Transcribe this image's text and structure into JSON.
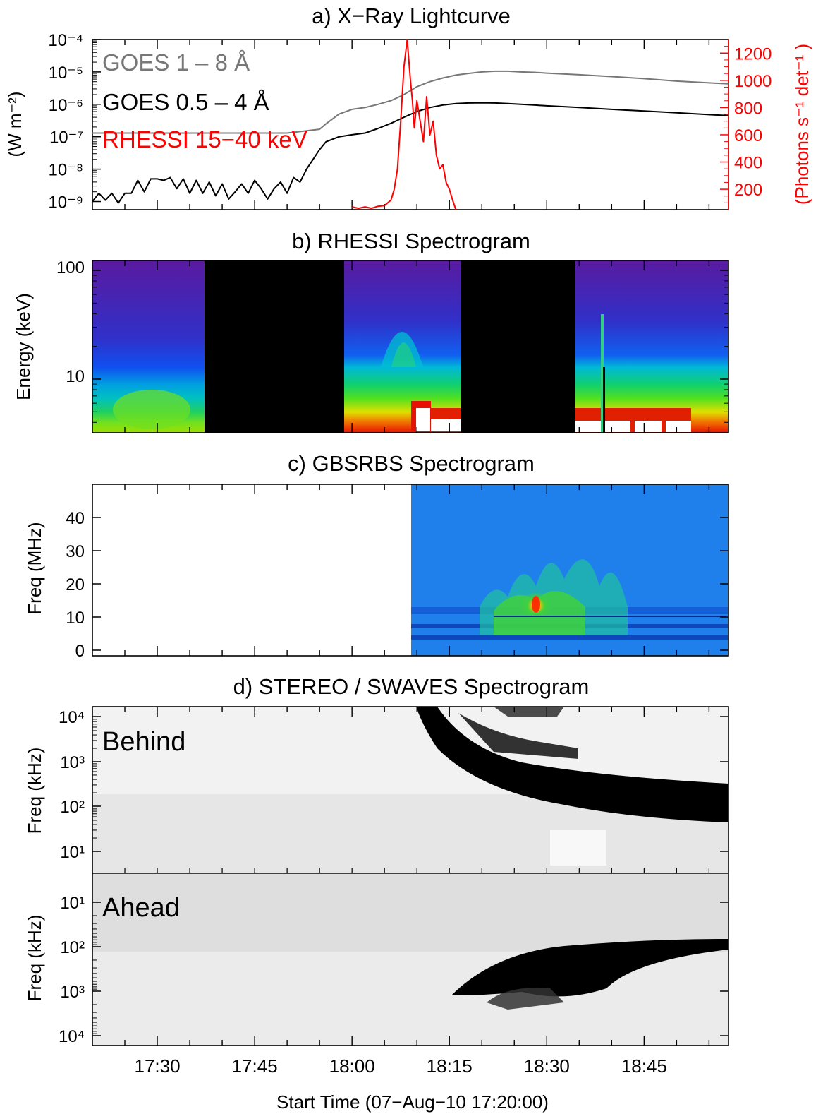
{
  "figure": {
    "xlabel": "Start Time (07−Aug−10 17:20:00)",
    "x_tick_labels": [
      "17:30",
      "17:45",
      "18:00",
      "18:15",
      "18:30",
      "18:45"
    ],
    "colors": {
      "goes_long": "#777777",
      "goes_short": "#000000",
      "rhessi": "#ff0000",
      "frame": "#000000"
    }
  },
  "chart_data": [
    {
      "type": "line",
      "title": "a) X−Ray Lightcurve",
      "ylabel_left": "(W m⁻²)",
      "ylabel_right": "(Photons s⁻¹ det⁻¹ )",
      "x_unit": "minutes after 17:20:00",
      "xlim": [
        0,
        98
      ],
      "ylim_left_log10": [
        -9.25,
        -4.0
      ],
      "ylim_right": [
        50,
        1300
      ],
      "left_ticks": [
        "10⁻⁹",
        "10⁻⁸",
        "10⁻⁷",
        "10⁻⁶",
        "10⁻⁵",
        "10⁻⁴"
      ],
      "right_ticks": [
        "200",
        "400",
        "600",
        "800",
        "1000",
        "1200"
      ],
      "series": [
        {
          "name": "GOES 1 – 8 Å",
          "axis": "left",
          "color": "#777777",
          "x": [
            0,
            5,
            10,
            15,
            20,
            25,
            30,
            35,
            36,
            38,
            40,
            42,
            44,
            46,
            48,
            50,
            52,
            54,
            56,
            58,
            60,
            62,
            64,
            66,
            68,
            70,
            75,
            80,
            85,
            90,
            95,
            98
          ],
          "y": [
            1.3e-07,
            1.3e-07,
            1.3e-07,
            1.3e-07,
            1.3e-07,
            1.3e-07,
            1.3e-07,
            1.7e-07,
            2.5e-07,
            5e-07,
            7e-07,
            8e-07,
            1e-06,
            1.3e-06,
            2e-06,
            3.5e-06,
            5e-06,
            6.5e-06,
            8e-06,
            9e-06,
            1e-05,
            1.05e-05,
            1.05e-05,
            1e-05,
            9.7e-06,
            9.2e-06,
            8.2e-06,
            7.2e-06,
            6.2e-06,
            5.2e-06,
            4.6e-06,
            4.3e-06
          ]
        },
        {
          "name": "GOES 0.5 – 4 Å",
          "axis": "left",
          "color": "#000000",
          "x": [
            0,
            1,
            2,
            3,
            4,
            5,
            6,
            7,
            8,
            9,
            10,
            11,
            12,
            13,
            14,
            15,
            16,
            17,
            18,
            19,
            20,
            21,
            22,
            23,
            24,
            25,
            26,
            27,
            28,
            29,
            30,
            31,
            32,
            33,
            34,
            35,
            36,
            38,
            40,
            42,
            44,
            46,
            48,
            50,
            52,
            54,
            56,
            58,
            60,
            62,
            64,
            66,
            68,
            70,
            75,
            80,
            85,
            90,
            95,
            98
          ],
          "y": [
            1e-09,
            1.8e-09,
            1.1e-09,
            1.8e-09,
            9e-10,
            1.8e-09,
            1.8e-09,
            4.5e-09,
            2e-09,
            5e-09,
            5e-09,
            4.5e-09,
            5.5e-09,
            2.5e-09,
            5e-09,
            1.8e-09,
            4.5e-09,
            1.8e-09,
            4e-09,
            1.5e-09,
            3.5e-09,
            1.2e-09,
            2e-09,
            3.5e-09,
            1.8e-09,
            4.5e-09,
            2.5e-09,
            1.2e-09,
            2.5e-09,
            4e-09,
            1.8e-09,
            5.5e-09,
            4e-09,
            1e-08,
            2e-08,
            4e-08,
            7e-08,
            1e-07,
            1.15e-07,
            1.3e-07,
            1.8e-07,
            2.6e-07,
            4e-07,
            6e-07,
            8e-07,
            9.5e-07,
            1.05e-06,
            1.1e-06,
            1.12e-06,
            1.1e-06,
            1.05e-06,
            1e-06,
            9.5e-07,
            9e-07,
            8e-07,
            7e-07,
            6.2e-07,
            5.5e-07,
            4.8e-07,
            4.5e-07
          ]
        },
        {
          "name": "RHESSI 15−40 keV",
          "axis": "right",
          "color": "#ff0000",
          "x": [
            40,
            41,
            42,
            43,
            44,
            45,
            46,
            46.5,
            47,
            47.5,
            48,
            48.5,
            49,
            49.3,
            49.6,
            50,
            50.5,
            51,
            51.5,
            52,
            52.5,
            53,
            53.5,
            54,
            54.5,
            55,
            55.5,
            56
          ],
          "y": [
            70,
            60,
            70,
            60,
            75,
            80,
            120,
            200,
            350,
            700,
            1100,
            1300,
            1000,
            850,
            650,
            850,
            700,
            550,
            880,
            600,
            700,
            450,
            350,
            380,
            250,
            200,
            120,
            50
          ]
        }
      ]
    },
    {
      "type": "heatmap",
      "title": "b) RHESSI Spectrogram",
      "ylabel": "Energy (keV)",
      "y_tick_labels": [
        "100",
        "10"
      ],
      "ylim": [
        3,
        120
      ],
      "y_scale": "log",
      "data_gaps_minutes": [
        [
          17,
          39
        ],
        [
          57,
          75
        ]
      ],
      "colormap": "rainbow"
    },
    {
      "type": "heatmap",
      "title": "c) GBSRBS Spectrogram",
      "ylabel": "Freq (MHz)",
      "y_tick_labels": [
        "40",
        "30",
        "20",
        "10",
        "0"
      ],
      "ylim": [
        0,
        50
      ],
      "data_start_minute": 50
    },
    {
      "type": "heatmap",
      "title": "d) STEREO / SWAVES Spectrogram",
      "ylabel": "Freq (kHz)",
      "panels": [
        {
          "label": "Behind",
          "y_tick_labels": [
            "10⁴",
            "10³",
            "10²",
            "10¹"
          ],
          "y_scale": "log"
        },
        {
          "label": "Ahead",
          "y_tick_labels": [
            "10¹",
            "10²",
            "10³",
            "10⁴"
          ],
          "y_scale": "log"
        }
      ],
      "colormap": "grayscale-inverted"
    }
  ]
}
